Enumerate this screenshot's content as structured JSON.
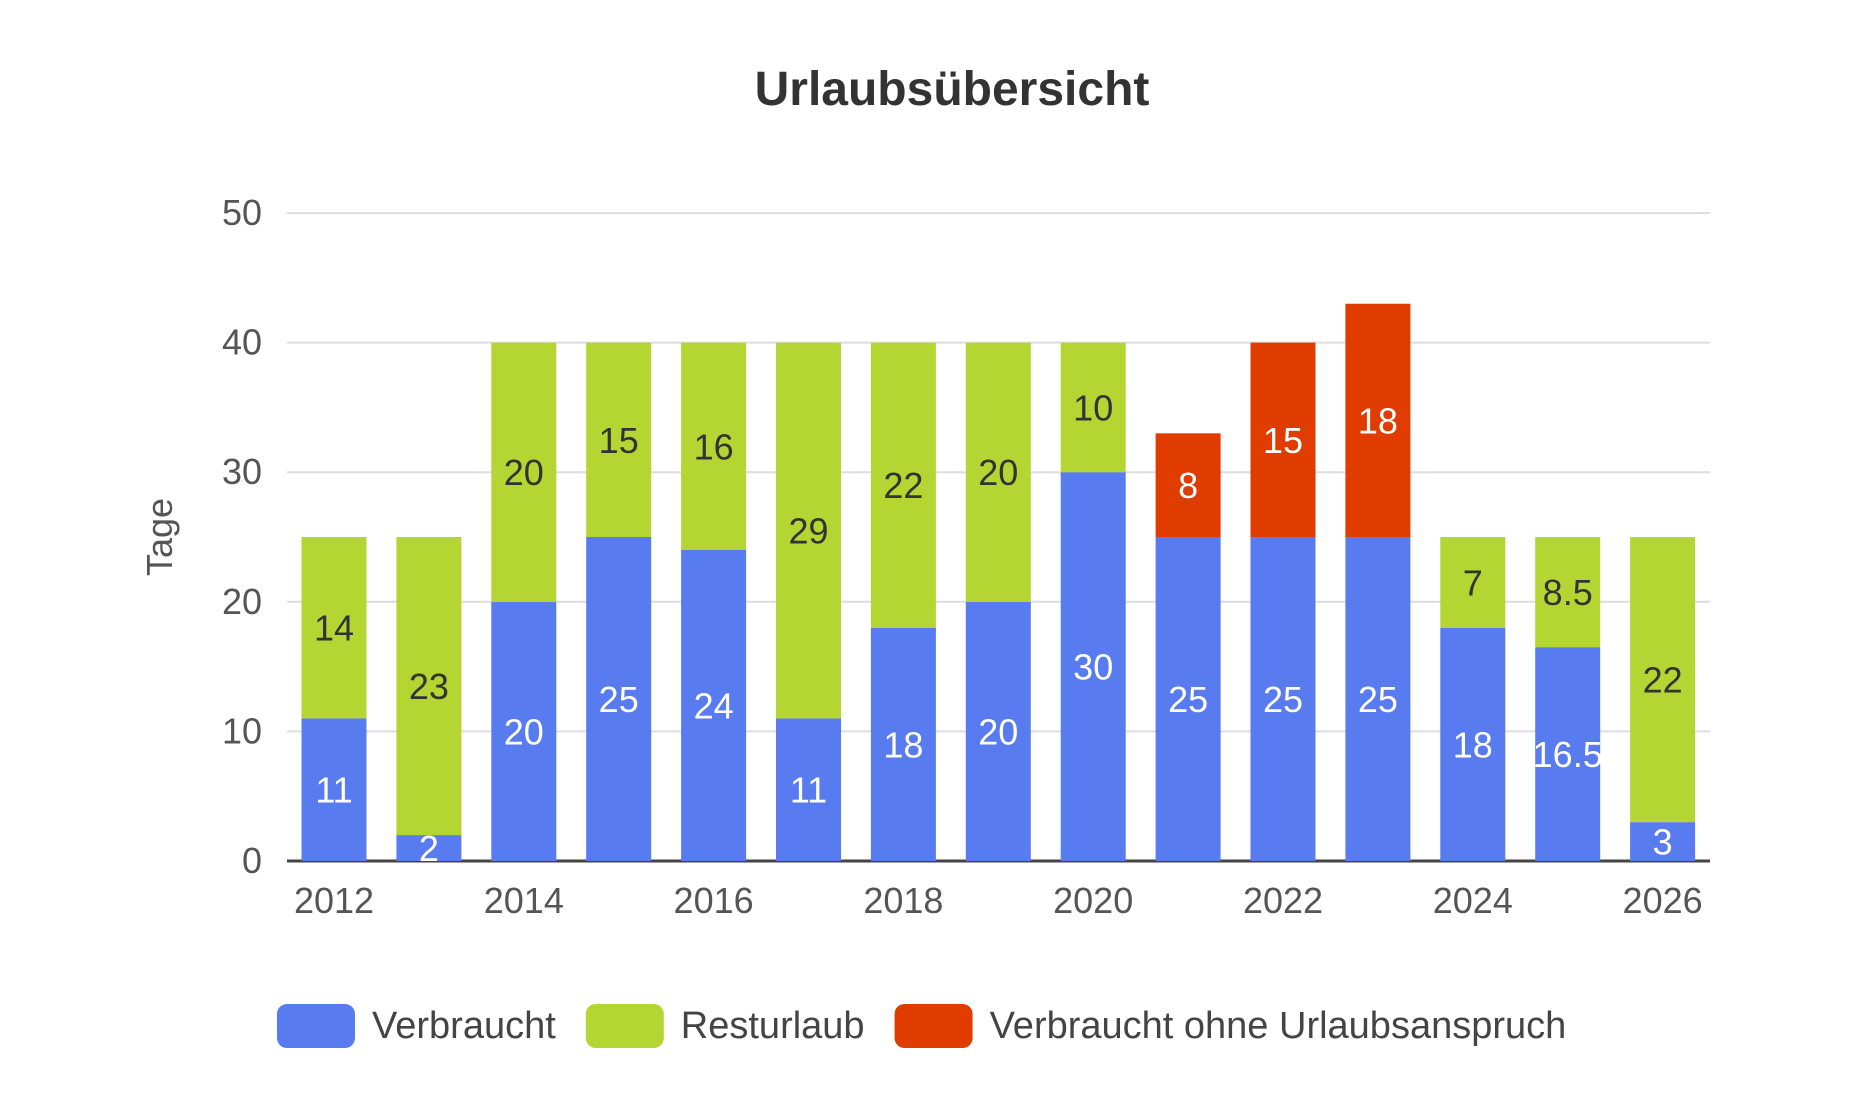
{
  "chart_data": {
    "type": "bar",
    "stacked": true,
    "title": "Urlaubsübersicht",
    "xlabel": "",
    "ylabel": "Tage",
    "ylim": [
      0,
      50
    ],
    "yticks": [
      0,
      10,
      20,
      30,
      40,
      50
    ],
    "grid": true,
    "legend_position": "bottom",
    "categories": [
      "2012",
      "2013",
      "2014",
      "2015",
      "2016",
      "2017",
      "2018",
      "2019",
      "2020",
      "2021",
      "2022",
      "2023",
      "2024",
      "2025",
      "2026"
    ],
    "xtick_labels": [
      "2012",
      "2014",
      "2016",
      "2018",
      "2020",
      "2022",
      "2024",
      "2026"
    ],
    "series": [
      {
        "name": "Verbraucht",
        "color": "#587bf0",
        "label_color": "#ffffff",
        "values": [
          11,
          2,
          20,
          25,
          24,
          11,
          18,
          20,
          30,
          25,
          25,
          25,
          18,
          16.5,
          3
        ]
      },
      {
        "name": "Resturlaub",
        "color": "#b5d632",
        "label_color": "#333333",
        "values": [
          14,
          23,
          20,
          15,
          16,
          29,
          22,
          20,
          10,
          null,
          null,
          null,
          7,
          8.5,
          22
        ]
      },
      {
        "name": "Verbraucht ohne Urlaubsanspruch",
        "color": "#e03c00",
        "label_color": "#ffffff",
        "values": [
          null,
          null,
          null,
          null,
          null,
          null,
          null,
          null,
          null,
          8,
          15,
          18,
          null,
          null,
          null
        ]
      }
    ]
  }
}
